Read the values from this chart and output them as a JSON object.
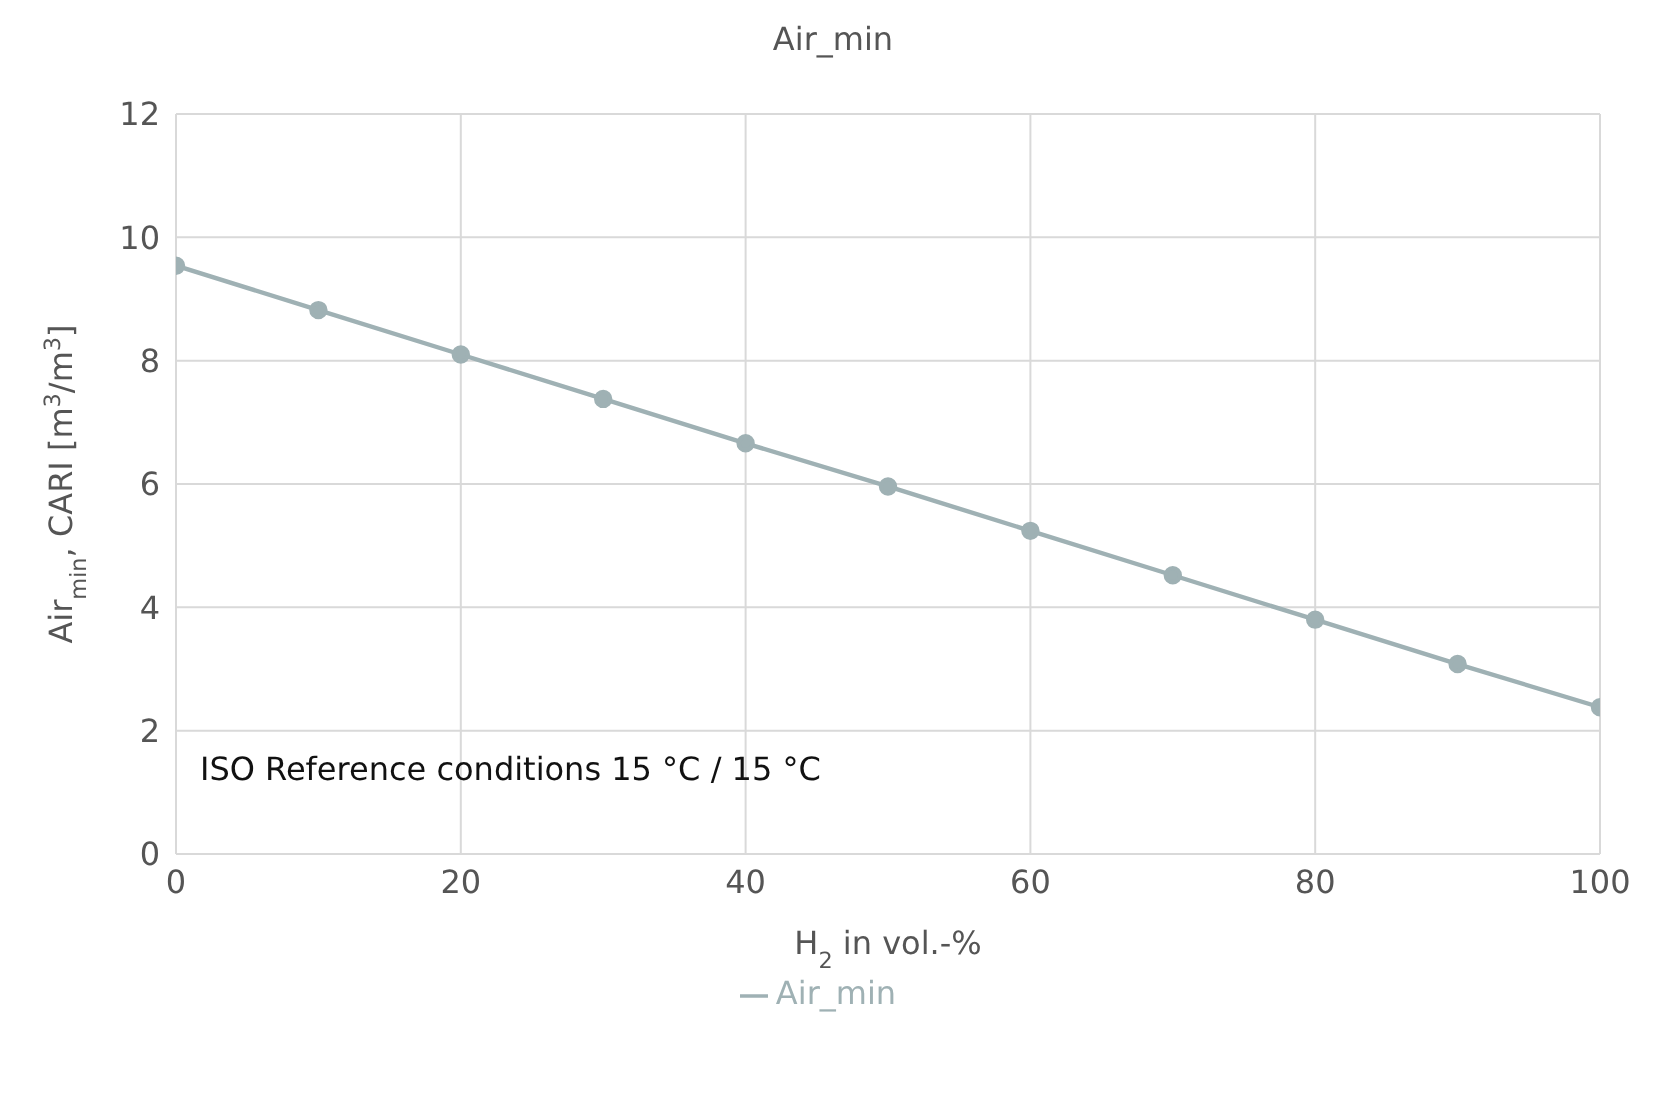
{
  "chart_data": {
    "type": "line",
    "title": "Air_min",
    "xlabel": "H$_{2}$ in vol.-%",
    "ylabel": "Air$_{min}$, CARI [m$^{3}$/m$^{3}$]",
    "x": [
      0,
      10,
      20,
      30,
      40,
      50,
      60,
      70,
      80,
      90,
      100
    ],
    "series": [
      {
        "name": "Air_min",
        "color": "#9fb1b4",
        "values": [
          9.54,
          8.82,
          8.1,
          7.38,
          6.66,
          5.96,
          5.24,
          4.52,
          3.8,
          3.08,
          2.38
        ]
      }
    ],
    "xlim": [
      0,
      100
    ],
    "xticks": [
      0,
      20,
      40,
      60,
      80,
      100
    ],
    "ylim": [
      0,
      12
    ],
    "yticks": [
      0,
      2,
      4,
      6,
      8,
      10,
      12
    ],
    "grid": true,
    "legend": "bottom",
    "marker": "circle",
    "line_style": "solid",
    "annotations": [
      "ISO Reference conditions 15 °C / 15 °C"
    ]
  }
}
